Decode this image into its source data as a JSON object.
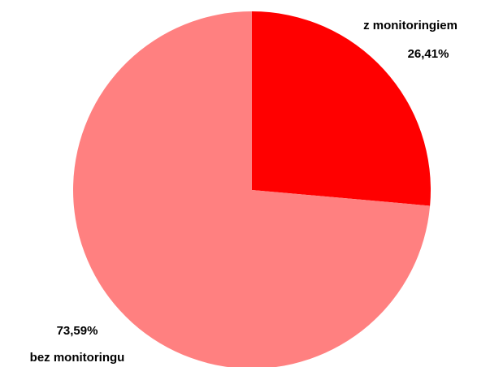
{
  "chart_data": {
    "type": "pie",
    "categories": [
      "z monitoringiem",
      "bez monitoringu"
    ],
    "values": [
      26.41,
      73.59
    ],
    "value_labels": [
      "26,41%",
      "73,59%"
    ],
    "colors": [
      "#ff0000",
      "#ff8080"
    ]
  }
}
